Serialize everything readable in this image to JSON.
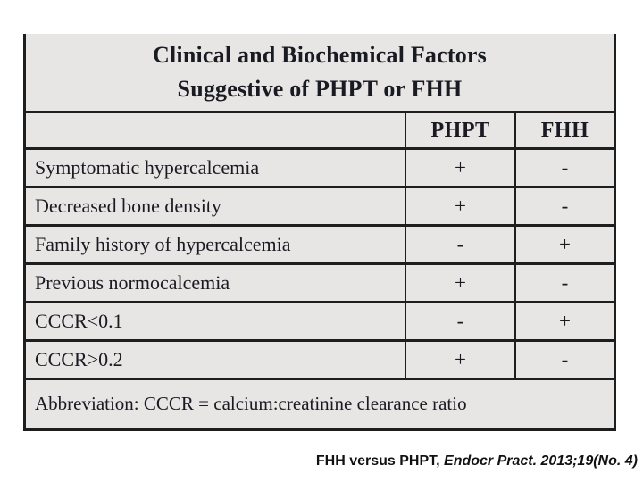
{
  "table": {
    "title_line1": "Clinical and Biochemical Factors",
    "title_line2": "Suggestive of PHPT or FHH",
    "header": {
      "label_col": "",
      "col_phpt": "PHPT",
      "col_fhh": "FHH"
    },
    "rows": [
      {
        "label": "Symptomatic hypercalcemia",
        "phpt": "+",
        "fhh": "-"
      },
      {
        "label": "Decreased bone density",
        "phpt": "+",
        "fhh": "-"
      },
      {
        "label": "Family history of hypercalcemia",
        "phpt": "-",
        "fhh": "+"
      },
      {
        "label": "Previous normocalcemia",
        "phpt": "+",
        "fhh": "-"
      },
      {
        "label": "CCCR<0.1",
        "phpt": "-",
        "fhh": "+"
      },
      {
        "label": "CCCR>0.2",
        "phpt": "+",
        "fhh": "-"
      }
    ],
    "footnote": "Abbreviation: CCCR = calcium:creatinine clearance ratio"
  },
  "footer": {
    "citation_plain": "FHH versus PHPT, ",
    "citation_italic": "Endocr Pract. 2013;19(No. 4)"
  },
  "colors": {
    "table_background": "#e7e6e5",
    "border": "#1e1e1e",
    "table_text": "#1a1a22",
    "citation_text": "#121212",
    "page_background": "#ffffff"
  }
}
